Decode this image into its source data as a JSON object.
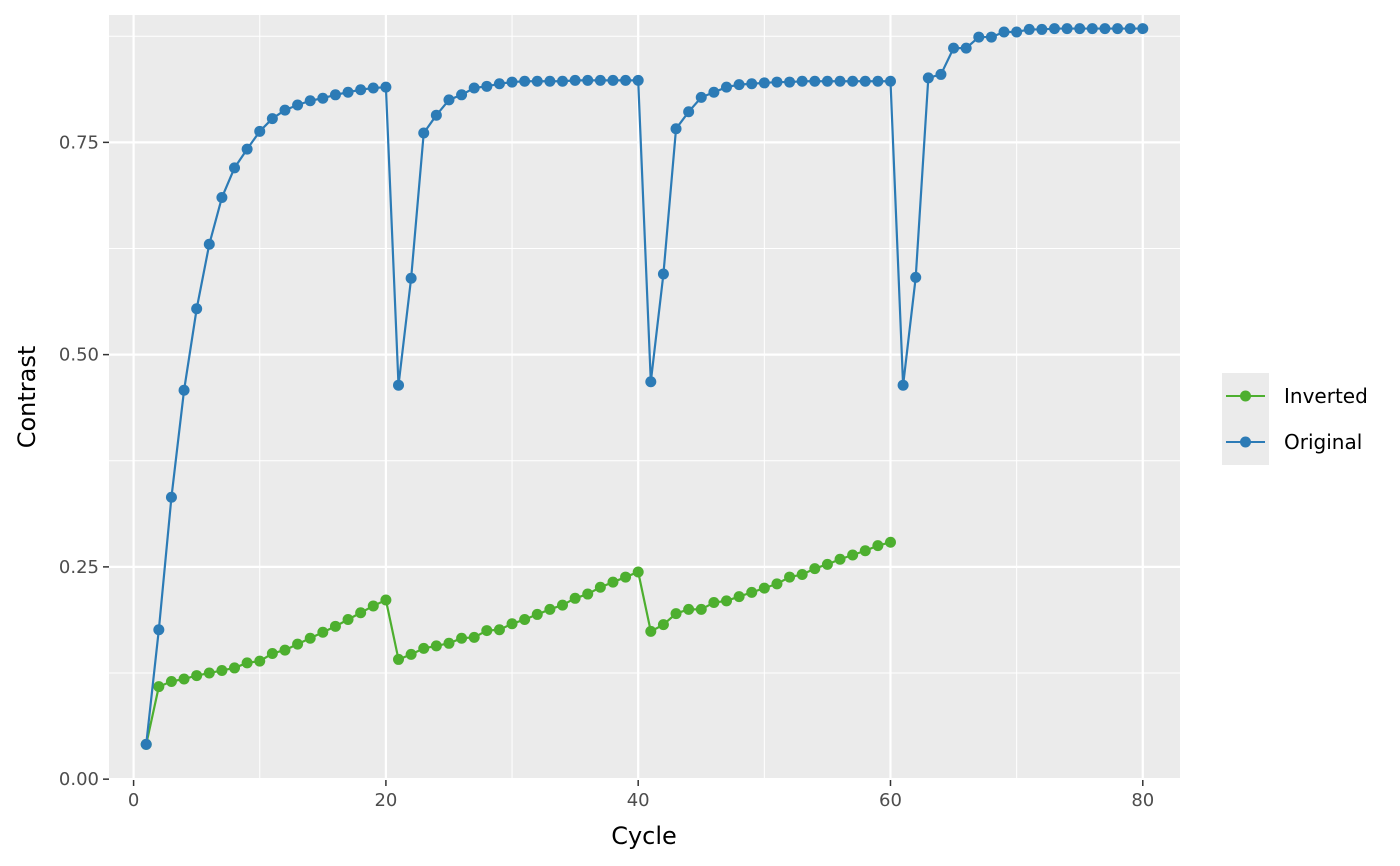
{
  "chart_data": {
    "type": "line",
    "title": "",
    "xlabel": "Cycle",
    "ylabel": "Contrast",
    "xlim": [
      -1.95,
      82.95
    ],
    "ylim": [
      -0.001,
      0.9
    ],
    "x_ticks": [
      0,
      20,
      40,
      60,
      80
    ],
    "x_tick_labels": [
      "0",
      "20",
      "40",
      "60",
      "80"
    ],
    "y_ticks": [
      0,
      0.25,
      0.5,
      0.75
    ],
    "y_tick_labels": [
      "0.00",
      "0.25",
      "0.50",
      "0.75"
    ],
    "grid": true,
    "legend": {
      "position": "right",
      "entries": [
        "Inverted",
        "Original"
      ]
    },
    "series": [
      {
        "name": "Inverted",
        "color": "#4DAF2F",
        "x": [
          1,
          2,
          3,
          4,
          5,
          6,
          7,
          8,
          9,
          10,
          11,
          12,
          13,
          14,
          15,
          16,
          17,
          18,
          19,
          20,
          21,
          22,
          23,
          24,
          25,
          26,
          27,
          28,
          29,
          30,
          31,
          32,
          33,
          34,
          35,
          36,
          37,
          38,
          39,
          40,
          41,
          42,
          43,
          44,
          45,
          46,
          47,
          48,
          49,
          50,
          51,
          52,
          53,
          54,
          55,
          56,
          57,
          58,
          59,
          60
        ],
        "y": [
          0.041,
          0.109,
          0.115,
          0.118,
          0.122,
          0.125,
          0.128,
          0.131,
          0.137,
          0.139,
          0.148,
          0.152,
          0.159,
          0.166,
          0.173,
          0.18,
          0.188,
          0.196,
          0.204,
          0.211,
          0.141,
          0.147,
          0.154,
          0.157,
          0.16,
          0.166,
          0.167,
          0.175,
          0.176,
          0.183,
          0.188,
          0.194,
          0.2,
          0.205,
          0.213,
          0.218,
          0.226,
          0.232,
          0.238,
          0.244,
          0.174,
          0.182,
          0.195,
          0.2,
          0.2,
          0.208,
          0.21,
          0.215,
          0.22,
          0.225,
          0.23,
          0.238,
          0.241,
          0.248,
          0.253,
          0.259,
          0.264,
          0.269,
          0.275,
          0.279
        ]
      },
      {
        "name": "Original",
        "color": "#2C7BB6",
        "x": [
          1,
          2,
          3,
          4,
          5,
          6,
          7,
          8,
          9,
          10,
          11,
          12,
          13,
          14,
          15,
          16,
          17,
          18,
          19,
          20,
          21,
          22,
          23,
          24,
          25,
          26,
          27,
          28,
          29,
          30,
          31,
          32,
          33,
          34,
          35,
          36,
          37,
          38,
          39,
          40,
          41,
          42,
          43,
          44,
          45,
          46,
          47,
          48,
          49,
          50,
          51,
          52,
          53,
          54,
          55,
          56,
          57,
          58,
          59,
          60,
          61,
          62,
          63,
          64,
          65,
          66,
          67,
          68,
          69,
          70,
          71,
          72,
          73,
          74,
          75,
          76,
          77,
          78,
          79,
          80
        ],
        "y": [
          0.041,
          0.176,
          0.332,
          0.458,
          0.554,
          0.63,
          0.685,
          0.72,
          0.742,
          0.763,
          0.778,
          0.788,
          0.794,
          0.799,
          0.802,
          0.806,
          0.809,
          0.812,
          0.814,
          0.815,
          0.464,
          0.59,
          0.761,
          0.782,
          0.8,
          0.806,
          0.814,
          0.816,
          0.819,
          0.821,
          0.822,
          0.822,
          0.822,
          0.822,
          0.823,
          0.823,
          0.823,
          0.823,
          0.823,
          0.823,
          0.468,
          0.595,
          0.766,
          0.786,
          0.803,
          0.809,
          0.815,
          0.818,
          0.819,
          0.82,
          0.821,
          0.821,
          0.822,
          0.822,
          0.822,
          0.822,
          0.822,
          0.822,
          0.822,
          0.822,
          0.464,
          0.591,
          0.826,
          0.83,
          0.861,
          0.861,
          0.874,
          0.874,
          0.88,
          0.88,
          0.883,
          0.883,
          0.884,
          0.884,
          0.884,
          0.884,
          0.884,
          0.884,
          0.884,
          0.884
        ]
      }
    ]
  },
  "colors": {
    "panel_background": "#EBEBEB",
    "grid_major": "#FFFFFF",
    "legend_key_background": "#EBEBEB"
  }
}
